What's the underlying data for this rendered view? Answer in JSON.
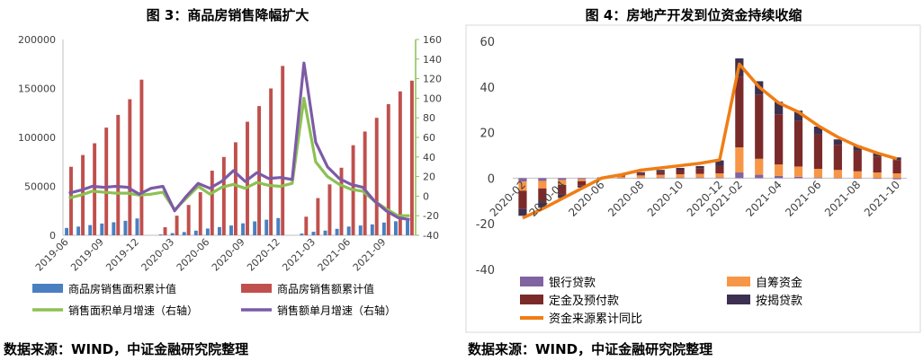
{
  "chart_data": [
    {
      "type": "bar",
      "title": "图 3：商品房销售降幅扩大",
      "source": "数据来源：WIND，中证金融研究院整理",
      "xlabel": "",
      "ylabel": "",
      "ylim": [
        0,
        200000
      ],
      "y2lim": [
        -40,
        160
      ],
      "left_ticks": [
        "200000",
        "150000",
        "100000",
        "50000",
        "0"
      ],
      "right_ticks": [
        "160",
        "140",
        "120",
        "100",
        "80",
        "60",
        "40",
        "20",
        "0",
        "-20",
        "-40"
      ],
      "x_tick_labels": [
        "2019-06",
        "2019-09",
        "2019-12",
        "2020-03",
        "2020-06",
        "2020-09",
        "2020-12",
        "2021-03",
        "2021-06",
        "2021-09"
      ],
      "categories": [
        "2019-06",
        "2019-07",
        "2019-08",
        "2019-09",
        "2019-10",
        "2019-11",
        "2019-12",
        "2020-01",
        "2020-02",
        "2020-03",
        "2020-04",
        "2020-05",
        "2020-06",
        "2020-07",
        "2020-08",
        "2020-09",
        "2020-10",
        "2020-11",
        "2020-12",
        "2021-01",
        "2021-02",
        "2021-03",
        "2021-04",
        "2021-05",
        "2021-06",
        "2021-07",
        "2021-08",
        "2021-09",
        "2021-10",
        "2021-11"
      ],
      "series": [
        {
          "name": "商品房销售面积累计值",
          "axis": "left",
          "kind": "bar",
          "color": "#4a7fc1",
          "values": [
            7500,
            8900,
            10400,
            12000,
            13300,
            14800,
            17200,
            null,
            850,
            2200,
            3300,
            4700,
            6900,
            8400,
            10000,
            12200,
            14200,
            15900,
            17600,
            null,
            1740,
            3600,
            4800,
            6600,
            8900,
            10000,
            11100,
            13000,
            14300,
            15000
          ]
        },
        {
          "name": "商品房销售额累计值",
          "axis": "left",
          "kind": "bar",
          "color": "#c0504d",
          "values": [
            70000,
            82000,
            94000,
            110000,
            123000,
            139000,
            159000,
            null,
            8200,
            20000,
            31000,
            44000,
            66000,
            80000,
            95000,
            116000,
            132000,
            150000,
            173000,
            null,
            19000,
            38000,
            52000,
            69000,
            92000,
            106000,
            120000,
            134000,
            147000,
            158000
          ]
        },
        {
          "name": "销售面积单月增速（右轴）",
          "axis": "right",
          "kind": "line",
          "color": "#8cc152",
          "values": [
            -2,
            1,
            5,
            4,
            3,
            3,
            1,
            2,
            4,
            -14,
            -2,
            10,
            2,
            9,
            12,
            8,
            14,
            11,
            10,
            13,
            100,
            35,
            20,
            12,
            7,
            5,
            -5,
            -13,
            -20,
            -20
          ]
        },
        {
          "name": "销售额单月增速（右轴）",
          "axis": "right",
          "kind": "line",
          "color": "#7d5aa6",
          "values": [
            3,
            6,
            10,
            9,
            10,
            9,
            2,
            8,
            10,
            -15,
            0,
            13,
            8,
            15,
            26,
            15,
            24,
            18,
            19,
            17,
            136,
            55,
            30,
            18,
            12,
            9,
            -5,
            -15,
            -22,
            -24
          ]
        }
      ]
    },
    {
      "type": "bar",
      "title": "图 4：房地产开发到位资金持续收缩",
      "source": "数据来源：WIND，中证金融研究院整理",
      "xlabel": "",
      "ylabel": "",
      "ylim": [
        -40,
        60
      ],
      "y_ticks": [
        "60",
        "40",
        "20",
        "0",
        "-20",
        "-40"
      ],
      "x_tick_labels": [
        "2020-02",
        "2020-04",
        "2020-06",
        "2020-08",
        "2020-10",
        "2020-12",
        "2021-02",
        "2021-04",
        "2021-06",
        "2021-08",
        "2021-10"
      ],
      "categories": [
        "2020-02",
        "2020-03",
        "2020-04",
        "2020-05",
        "2020-06",
        "2020-07",
        "2020-08",
        "2020-09",
        "2020-10",
        "2020-11",
        "2020-12",
        "2021-02",
        "2021-03",
        "2021-04",
        "2021-05",
        "2021-06",
        "2021-07",
        "2021-08",
        "2021-09",
        "2021-10"
      ],
      "series": [
        {
          "name": "银行贷款",
          "kind": "stacked-bar",
          "color": "#8064a2",
          "values": [
            -1.5,
            -1.2,
            -0.8,
            -0.4,
            -0.1,
            0.1,
            0.2,
            0.3,
            0.3,
            0.3,
            0.3,
            2.5,
            1.5,
            1.0,
            0.6,
            0.3,
            0.1,
            -0.2,
            -0.3,
            -0.5
          ]
        },
        {
          "name": "自筹资金",
          "kind": "stacked-bar",
          "color": "#f79646",
          "values": [
            -4,
            -3.3,
            -2.2,
            -0.9,
            0.2,
            0.6,
            1.0,
            1.2,
            1.4,
            1.6,
            1.8,
            11,
            7,
            5,
            4.5,
            3.8,
            3.5,
            3.0,
            2.5,
            2.1
          ]
        },
        {
          "name": "定金及预付款",
          "kind": "stacked-bar",
          "color": "#7b2a2a",
          "values": [
            -8,
            -6,
            -4,
            -2,
            -0.3,
            0.3,
            0.8,
            1.3,
            1.8,
            2.3,
            3.2,
            31,
            28,
            22,
            20,
            15,
            11,
            9,
            7,
            5.8
          ]
        },
        {
          "name": "按揭贷款",
          "kind": "stacked-bar",
          "color": "#3d3050",
          "values": [
            -3,
            -2.5,
            -1.7,
            -0.8,
            0.1,
            0.5,
            0.6,
            0.8,
            1.0,
            1.1,
            2.5,
            8,
            6,
            5.5,
            4.5,
            3.5,
            2.4,
            2.2,
            1.6,
            1.2
          ]
        },
        {
          "name": "资金来源累计同比",
          "kind": "line",
          "color": "#f07d14",
          "values": [
            -17.5,
            -13.5,
            -9,
            -4.5,
            0,
            1.5,
            3.5,
            4.5,
            5.5,
            6.5,
            8.0,
            50,
            40,
            33,
            29,
            23,
            18,
            14,
            11,
            8.5
          ]
        }
      ]
    }
  ]
}
